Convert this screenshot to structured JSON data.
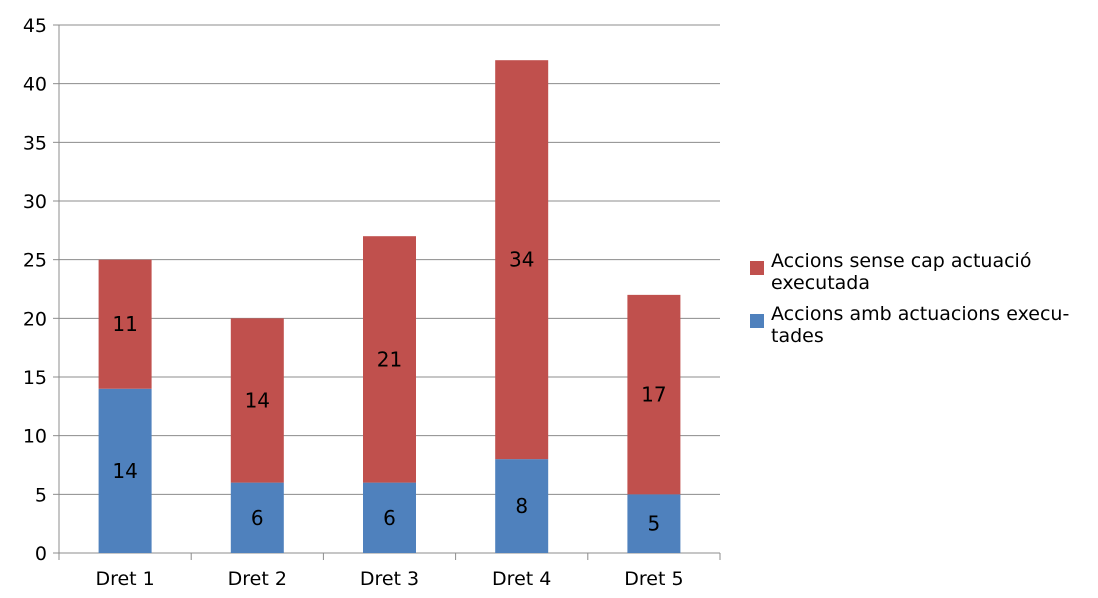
{
  "chart_data": {
    "type": "bar",
    "stacked": true,
    "title": "",
    "xlabel": "",
    "ylabel": "",
    "categories": [
      "Dret 1",
      "Dret 2",
      "Dret 3",
      "Dret 4",
      "Dret 5"
    ],
    "series": [
      {
        "name": "Accions amb actuacions executades",
        "display_name": "Accions amb actuacions execu-tades",
        "color": "#4f81bd",
        "values": [
          14,
          6,
          6,
          8,
          5
        ]
      },
      {
        "name": "Accions sense cap actuació executada",
        "display_name": "Accions sense cap actuació executada",
        "color": "#c0504d",
        "values": [
          11,
          14,
          21,
          34,
          17
        ]
      }
    ],
    "ylim": [
      0,
      45
    ],
    "yticks": [
      0,
      5,
      10,
      15,
      20,
      25,
      30,
      35,
      40,
      45
    ],
    "grid": true,
    "legend_position": "right"
  }
}
